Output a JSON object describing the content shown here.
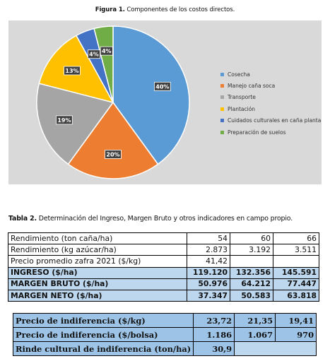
{
  "figure": {
    "label": "Figura 1.",
    "caption": "Componentes de los costos directos."
  },
  "chart_data": {
    "type": "pie",
    "categories": [
      "Cosecha",
      "Manejo caña soca",
      "Transporte",
      "Plantación",
      "Cuidados culturales en caña planta",
      "Preparación de suelos"
    ],
    "values": [
      40,
      20,
      19,
      13,
      4,
      4
    ],
    "labels": [
      "40%",
      "20%",
      "19%",
      "13%",
      "4%",
      "4%"
    ],
    "colors": [
      "#5b9bd5",
      "#ed7d31",
      "#a5a5a5",
      "#ffc000",
      "#4472c4",
      "#70ad47"
    ],
    "legend": "right"
  },
  "table_caption": {
    "label": "Tabla 2.",
    "text": "Determinación del Ingreso, Margen Bruto y otros indicadores en campo propio."
  },
  "table1": {
    "rows": [
      {
        "label": "Rendimiento (ton caña/ha)",
        "values": [
          "54",
          "60",
          "66"
        ],
        "bold": false
      },
      {
        "label": "Rendimiento (kg azúcar/ha)",
        "values": [
          "2.873",
          "3.192",
          "3.511"
        ],
        "bold": false
      },
      {
        "label": "Precio promedio zafra 2021 ($/kg)",
        "values": [
          "41,42",
          "",
          ""
        ],
        "bold": false
      },
      {
        "label": "INGRESO ($/ha)",
        "values": [
          "119.120",
          "132.356",
          "145.591"
        ],
        "bold": true
      },
      {
        "label": "MARGEN BRUTO ($/ha)",
        "values": [
          "50.976",
          "64.212",
          "77.447"
        ],
        "bold": true
      },
      {
        "label": "MARGEN NETO ($/ha)",
        "values": [
          "37.347",
          "50.583",
          "63.818"
        ],
        "bold": true
      }
    ]
  },
  "table2": {
    "rows": [
      {
        "label": "Precio de indiferencia  ($/kg)",
        "values": [
          "23,72",
          "21,35",
          "19,41"
        ]
      },
      {
        "label": "Precio de indiferencia ($/bolsa)",
        "values": [
          "1.186",
          "1.067",
          "970"
        ]
      },
      {
        "label": "Rinde cultural de indiferencia (ton/ha)",
        "values": [
          "30,9",
          "",
          ""
        ]
      }
    ]
  }
}
